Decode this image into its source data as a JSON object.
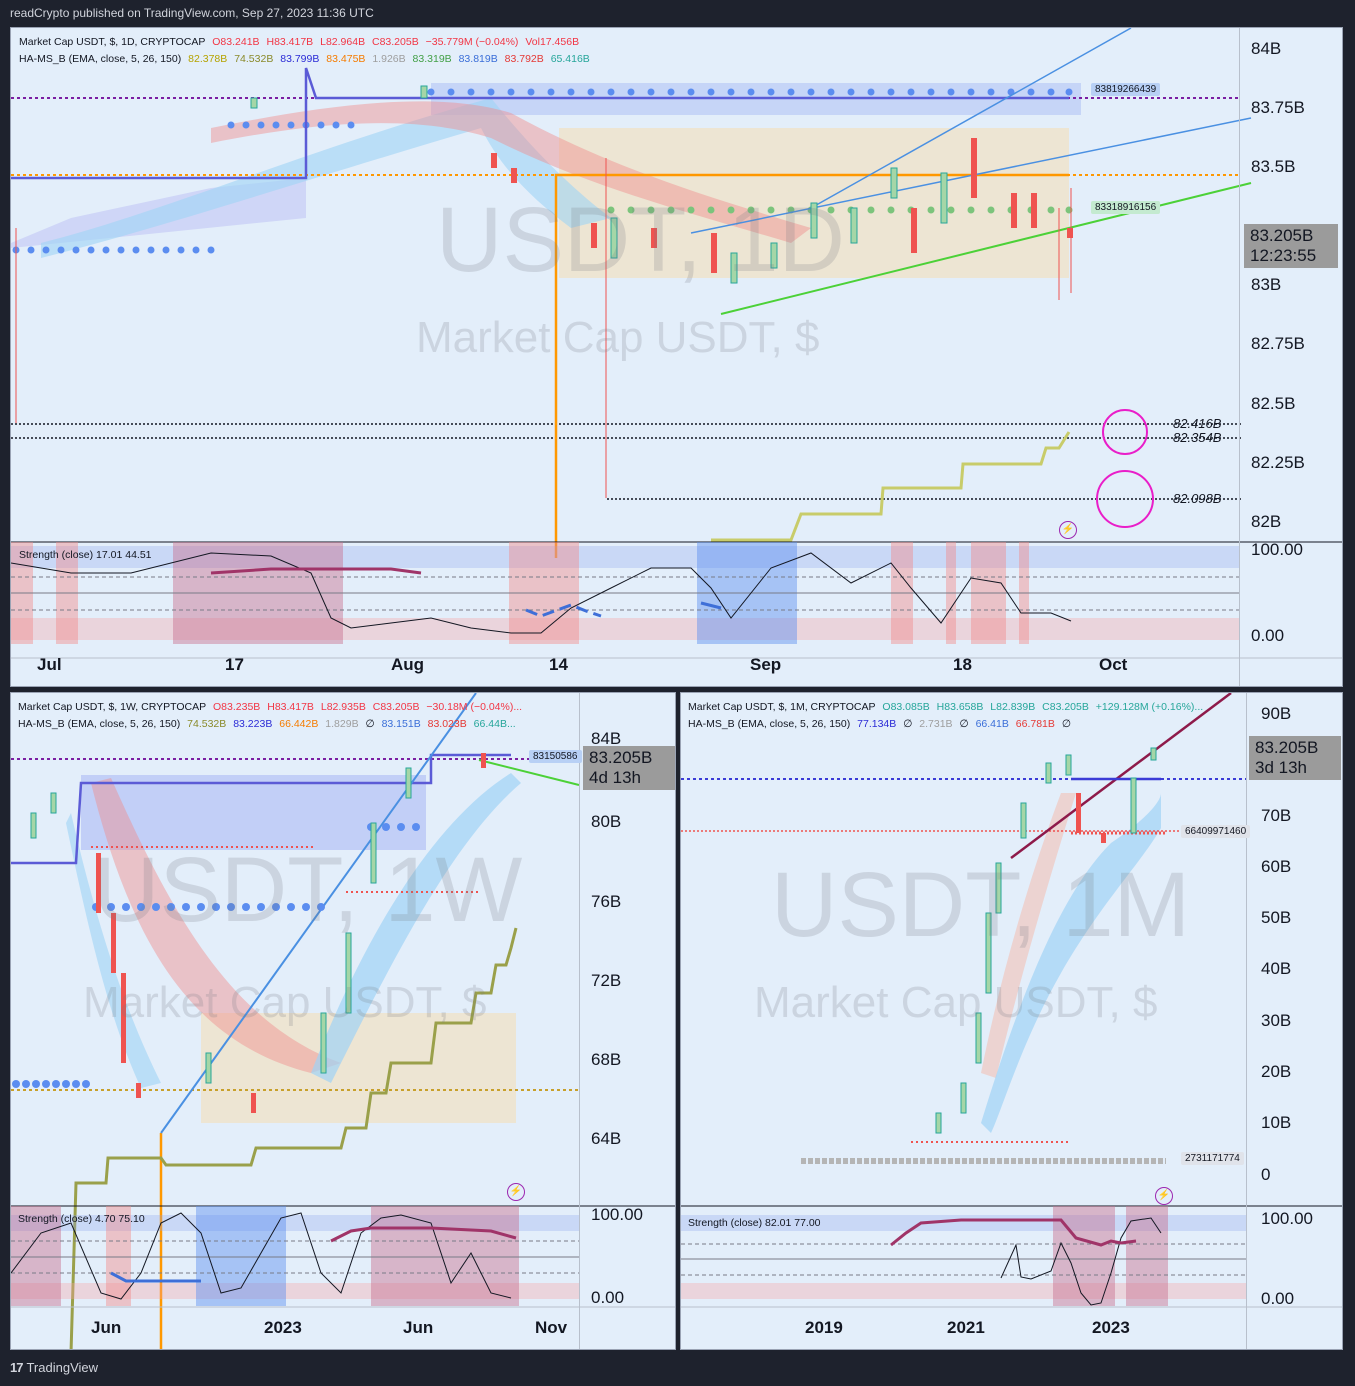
{
  "header": {
    "published": "readCrypto published on TradingView.com, Sep 27, 2023 11:36 UTC"
  },
  "footer": {
    "brand": "TradingView"
  },
  "top_chart": {
    "legend1": {
      "name": "Market Cap USDT, $, 1D, CRYPTOCAP",
      "o": "O83.241B",
      "h": "H83.417B",
      "l": "L82.964B",
      "c": "C83.205B",
      "chg": "−35.779M (−0.04%)",
      "vol": "Vol17.456B"
    },
    "legend2": {
      "name": "HA-MS_B (EMA, close, 5, 26, 150)",
      "v1": "82.378B",
      "v2": "74.532B",
      "v3": "83.799B",
      "v4": "83.475B",
      "v5": "1.926B",
      "v6": "83.319B",
      "v7": "83.819B",
      "v8": "83.792B",
      "v9": "65.416B"
    },
    "watermark1": "USDT, 1D",
    "watermark2": "Market Cap USDT, $",
    "price": "83.205B",
    "countdown": "12:23:55",
    "flag_upper": "83819266439",
    "flag_mid": "83318916156",
    "level1": "82.416B",
    "level2": "82.354B",
    "level3": "82.098B",
    "y_labels": [
      "84B",
      "83.75B",
      "83.5B",
      "83.25B",
      "83B",
      "82.75B",
      "82.5B",
      "82.25B",
      "82B"
    ],
    "x_labels": [
      "Jul",
      "17",
      "Aug",
      "14",
      "Sep",
      "18",
      "Oct"
    ],
    "strength": {
      "label": "Strength (close)",
      "v1": "17.01",
      "v2": "44.51",
      "y_labels": [
        "100.00",
        "0.00"
      ]
    }
  },
  "weekly_chart": {
    "legend1": {
      "name": "Market Cap USDT, $, 1W, CRYPTOCAP",
      "o": "O83.235B",
      "h": "H83.417B",
      "l": "L82.935B",
      "c": "C83.205B",
      "chg": "−30.18M (−0.04%)..."
    },
    "legend2": {
      "name": "HA-MS_B (EMA, close, 5, 26, 150)",
      "v1": "74.532B",
      "v2": "83.223B",
      "v3": "66.442B",
      "v4": "1.829B",
      "v5": "∅",
      "v6": "83.151B",
      "v7": "83.023B",
      "v8": "66.44B..."
    },
    "watermark1": "USDT, 1W",
    "watermark2": "Market Cap USDT, $",
    "price": "83.205B",
    "countdown": "4d 13h",
    "flag": "83150586",
    "y_labels": [
      "84B",
      "80B",
      "76B",
      "72B",
      "68B",
      "64B"
    ],
    "x_labels": [
      "Jun",
      "2023",
      "Jun",
      "Nov"
    ],
    "strength": {
      "label": "Strength (close)",
      "v1": "4.70",
      "v2": "75.10",
      "y_labels": [
        "100.00",
        "0.00"
      ]
    }
  },
  "monthly_chart": {
    "legend1": {
      "name": "Market Cap USDT, $, 1M, CRYPTOCAP",
      "o": "O83.085B",
      "h": "H83.658B",
      "l": "L82.839B",
      "c": "C83.205B",
      "chg": "+129.128M (+0.16%)..."
    },
    "legend2": {
      "name": "HA-MS_B (EMA, close, 5, 26, 150)",
      "v1": "77.134B",
      "v2": "∅",
      "v3": "2.731B",
      "v4": "∅",
      "v5": "66.41B",
      "v6": "66.781B",
      "v7": "∅"
    },
    "watermark1": "USDT, 1M",
    "watermark2": "Market Cap USDT, $",
    "price": "83.205B",
    "countdown": "3d 13h",
    "flag_mid": "66409971460",
    "flag_low": "2731171774",
    "y_labels": [
      "90B",
      "80B",
      "70B",
      "60B",
      "50B",
      "40B",
      "30B",
      "20B",
      "10B",
      "0"
    ],
    "x_labels": [
      "2019",
      "2021",
      "2023"
    ],
    "strength": {
      "label": "Strength (close)",
      "v1": "82.01",
      "v2": "77.00",
      "y_labels": [
        "100.00",
        "0.00"
      ]
    }
  },
  "colors": {
    "background": "#1e222d",
    "panel": "#e3eefa",
    "up": "#26a69a",
    "down": "#ef5350",
    "orange": "#ff9800",
    "green_line": "#4cd137",
    "blue_line": "#4a90e2",
    "magenta": "#e91ec9"
  },
  "chart_data": [
    {
      "type": "line",
      "title": "Market Cap USDT, $, 1D, CRYPTOCAP",
      "x": [
        "Jul",
        "17",
        "Aug",
        "14",
        "Sep",
        "18",
        "Oct"
      ],
      "series": [
        {
          "name": "Market Cap USDT",
          "values": [
            82.4,
            83.28,
            83.8,
            83.3,
            83.1,
            83.3,
            83.205
          ]
        }
      ],
      "ylim": [
        82.0,
        84.0
      ]
    },
    {
      "type": "line",
      "title": "Market Cap USDT, $, 1W, CRYPTOCAP",
      "x": [
        "Jun",
        "2023",
        "Jun",
        "Nov"
      ],
      "series": [
        {
          "name": "Market Cap USDT",
          "values": [
            81.5,
            66.5,
            83.2,
            83.205
          ]
        }
      ],
      "ylim": [
        62,
        86
      ]
    },
    {
      "type": "line",
      "title": "Market Cap USDT, $, 1M, CRYPTOCAP",
      "x": [
        "2019",
        "2021",
        "2023"
      ],
      "series": [
        {
          "name": "Market Cap USDT",
          "values": [
            2.7,
            20,
            83.205
          ]
        }
      ],
      "ylim": [
        0,
        90
      ]
    }
  ]
}
